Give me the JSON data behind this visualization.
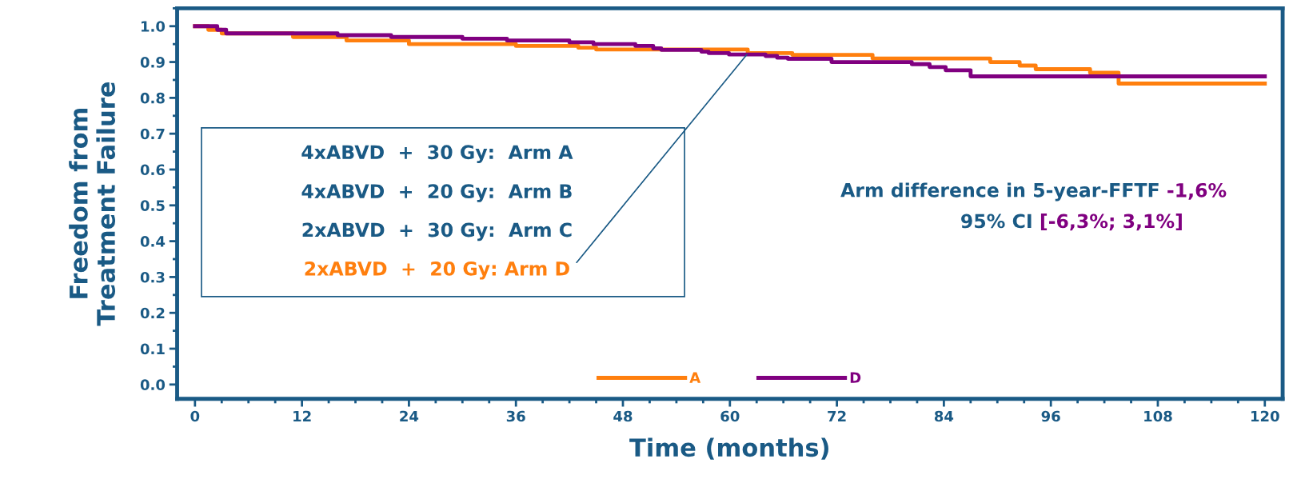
{
  "chart_data": {
    "type": "step",
    "xlabel": "Time (months)",
    "ylabel": "Freedom from\nTreatment Failure",
    "series": [
      {
        "name": "A",
        "color": "#ff7f0e",
        "x": [
          0,
          1.5,
          3,
          11,
          17,
          24,
          36,
          43,
          45,
          52,
          62,
          67,
          76,
          89.2,
          92.5,
          94.3,
          100.4,
          103.6,
          120
        ],
        "values": [
          1.0,
          0.99,
          0.98,
          0.97,
          0.96,
          0.95,
          0.945,
          0.94,
          0.935,
          0.935,
          0.925,
          0.92,
          0.91,
          0.9,
          0.89,
          0.88,
          0.87,
          0.84,
          0.84
        ]
      },
      {
        "name": "D",
        "color": "#800080",
        "x": [
          0,
          2.5,
          3.5,
          10,
          16,
          22,
          30,
          35,
          42,
          44.7,
          49.4,
          51.4,
          52.3,
          56.8,
          57.6,
          59.9,
          64,
          65.3,
          66.5,
          71.4,
          80.4,
          82.4,
          84.2,
          87,
          120
        ],
        "values": [
          1.0,
          0.99,
          0.98,
          0.98,
          0.975,
          0.97,
          0.965,
          0.96,
          0.955,
          0.95,
          0.945,
          0.938,
          0.934,
          0.929,
          0.925,
          0.921,
          0.917,
          0.912,
          0.909,
          0.9,
          0.894,
          0.886,
          0.877,
          0.86,
          0.86
        ]
      }
    ],
    "xlim": [
      -2,
      122
    ],
    "xticks": [
      0,
      12,
      24,
      36,
      48,
      60,
      72,
      84,
      96,
      108,
      120
    ],
    "ylim": [
      -0.04,
      1.05
    ],
    "yticks": [
      {
        "value": 0,
        "label": "0.0"
      },
      {
        "value": 0.1,
        "label": "0.1"
      },
      {
        "value": 0.2,
        "label": "0.2"
      },
      {
        "value": 0.3,
        "label": "0.3"
      },
      {
        "value": 0.4,
        "label": "0.4"
      },
      {
        "value": 0.5,
        "label": "0.5"
      },
      {
        "value": 0.6,
        "label": "0.6"
      },
      {
        "value": 0.7,
        "label": "0.7"
      },
      {
        "value": 0.8,
        "label": "0.8"
      },
      {
        "value": 0.9,
        "label": "0.9"
      },
      {
        "value": 1,
        "label": "1.0"
      }
    ],
    "legend": "bottom",
    "grid": false,
    "marker": "none",
    "line_style": "solid",
    "annotations": [
      "4xABVD  +  30 Gy:  Arm A",
      "4xABVD  +  20 Gy:  Arm B",
      "2xABVD  +  30 Gy:  Arm C",
      {
        "text": "2xABVD  +  20 Gy: Arm D",
        "x": 61.9,
        "y": 0.921
      },
      "Arm difference in 5-year-FFTF",
      "-1,6%",
      "95% CI",
      "[-6,3%; 3,1%]"
    ]
  }
}
